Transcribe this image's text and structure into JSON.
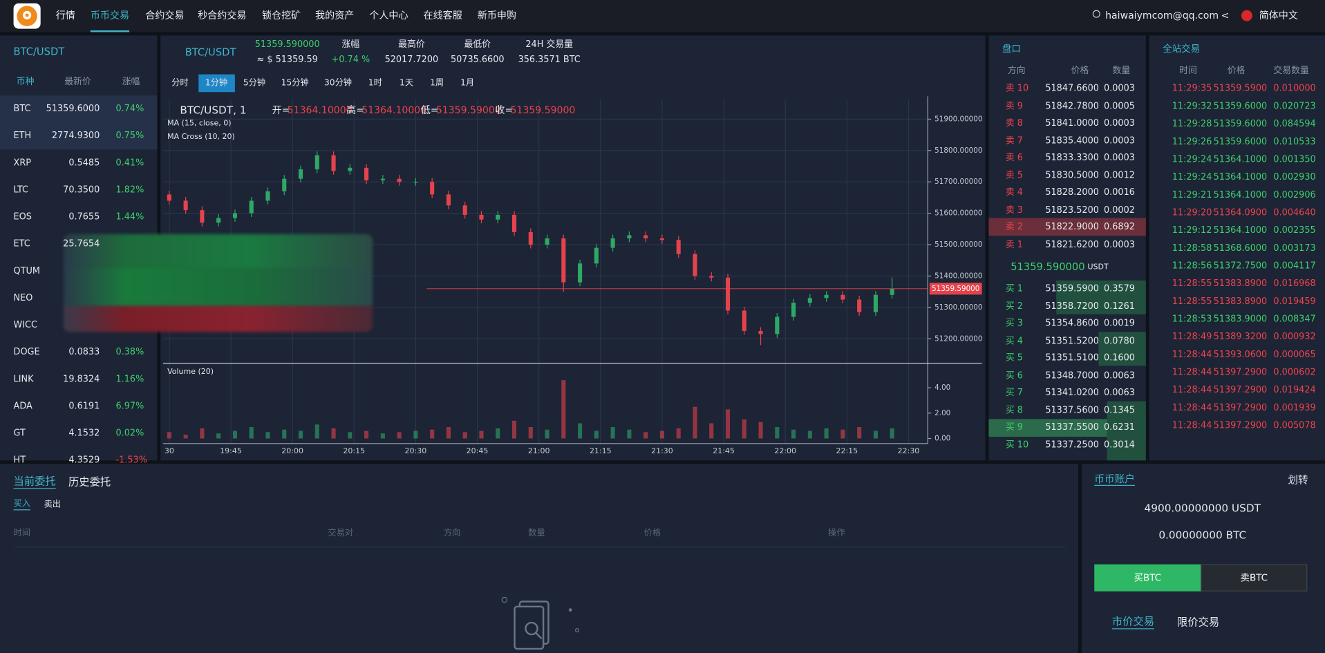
{
  "nav": {
    "items": [
      "行情",
      "币币交易",
      "合约交易",
      "秒合约交易",
      "锁仓挖矿",
      "我的资产",
      "个人中心",
      "在线客服",
      "新币申购"
    ],
    "user": "haiwaiymcom@qq.com",
    "caret": "<",
    "language": "简体中文"
  },
  "market": {
    "title": "BTC/USDT",
    "headers": [
      "币种",
      "最新价",
      "涨幅"
    ],
    "rows": [
      [
        "BTC",
        "51359.6000",
        "0.74%"
      ],
      [
        "ETH",
        "2774.9300",
        "0.75%"
      ],
      [
        "XRP",
        "0.5485",
        "0.41%"
      ],
      [
        "LTC",
        "70.3500",
        "1.82%"
      ],
      [
        "EOS",
        "0.7655",
        "1.44%"
      ],
      [
        "ETC",
        "25.7654",
        null
      ],
      [
        "QTUM",
        null,
        null
      ],
      [
        "NEO",
        null,
        null
      ],
      [
        "WICC",
        null,
        null
      ],
      [
        "DOGE",
        "0.0833",
        "0.38%"
      ],
      [
        "LINK",
        "19.8324",
        "1.16%"
      ],
      [
        "ADA",
        "0.6191",
        "6.97%"
      ],
      [
        "GT",
        "4.1532",
        "0.02%"
      ],
      [
        "HT",
        "4.3529",
        "-1.53%"
      ]
    ]
  },
  "ticker": {
    "pair": "BTC/USDT",
    "price": "51359.590000",
    "approx": "≈ $ 51359.59",
    "stats": [
      {
        "label": "涨幅",
        "value": "+0.74 %"
      },
      {
        "label": "最高价",
        "value": "52017.7200"
      },
      {
        "label": "最低价",
        "value": "50735.6600"
      },
      {
        "label": "24H 交易量",
        "value": "356.3571 BTC"
      }
    ]
  },
  "intervals": [
    "分时",
    "1分钟",
    "5分钟",
    "15分钟",
    "30分钟",
    "1时",
    "1天",
    "1周",
    "1月"
  ],
  "chart_data": {
    "type": "candlestick",
    "title": "BTC/USDT, 1",
    "ohlc": [
      {
        "key": "开=",
        "value": "51364.10000"
      },
      {
        "key": "高=",
        "value": "51364.10000"
      },
      {
        "key": "低=",
        "value": "51359.59000"
      },
      {
        "key": "收=",
        "value": "51359.59000"
      }
    ],
    "indicators": [
      "MA (15, close, 0)",
      "MA Cross (10, 20)"
    ],
    "volume_title": "Volume (20)",
    "up_color": "#2ea865",
    "down_color": "#e5434b",
    "grid": true,
    "x": [
      0,
      4,
      8,
      12,
      16,
      20,
      24,
      28,
      32,
      36,
      40,
      44,
      48,
      52,
      56,
      60,
      64,
      68,
      72,
      76,
      80,
      84,
      88,
      92,
      96,
      100,
      104,
      108,
      112,
      116,
      120,
      124,
      128,
      132,
      136,
      140,
      144,
      148,
      152,
      156,
      160,
      164,
      168,
      172,
      176
    ],
    "open": [
      51660,
      51640,
      51610,
      51570,
      51585,
      51600,
      51640,
      51670,
      51710,
      51740,
      51785,
      51735,
      51745,
      51705,
      51710,
      51700,
      51700,
      51660,
      51625,
      51595,
      51580,
      51595,
      51540,
      51500,
      51520,
      51380,
      51440,
      51490,
      51520,
      51530,
      51520,
      51515,
      51470,
      51400,
      51395,
      51290,
      51225,
      51215,
      51270,
      51315,
      51330,
      51340,
      51325,
      51285,
      51340
    ],
    "high": [
      51672,
      51652,
      51622,
      51597,
      51612,
      51652,
      51682,
      51722,
      51752,
      51797,
      51797,
      51757,
      51757,
      51722,
      51722,
      51712,
      51712,
      51672,
      51637,
      51607,
      51607,
      51607,
      51552,
      51532,
      51532,
      51452,
      51502,
      51532,
      51542,
      51542,
      51532,
      51527,
      51482,
      51412,
      51407,
      51302,
      51237,
      51282,
      51327,
      51342,
      51352,
      51352,
      51337,
      51352,
      51395
    ],
    "low": [
      51628,
      51598,
      51558,
      51558,
      51573,
      51588,
      51628,
      51658,
      51698,
      51728,
      51723,
      51723,
      51693,
      51693,
      51688,
      51688,
      51648,
      51613,
      51583,
      51568,
      51568,
      51528,
      51488,
      51488,
      51350,
      51368,
      51428,
      51478,
      51508,
      51508,
      51503,
      51458,
      51388,
      51383,
      51278,
      51213,
      51180,
      51203,
      51258,
      51303,
      51318,
      51313,
      51273,
      51273,
      51328
    ],
    "close": [
      51640,
      51610,
      51570,
      51585,
      51600,
      51640,
      51670,
      51710,
      51740,
      51785,
      51735,
      51745,
      51705,
      51710,
      51700,
      51700,
      51660,
      51625,
      51595,
      51580,
      51595,
      51540,
      51500,
      51520,
      51380,
      51440,
      51490,
      51520,
      51530,
      51520,
      51515,
      51470,
      51400,
      51395,
      51290,
      51225,
      51215,
      51270,
      51315,
      51330,
      51340,
      51325,
      51285,
      51340,
      51359.59
    ],
    "volume": [
      0.5,
      0.3,
      0.8,
      0.4,
      0.6,
      0.9,
      0.5,
      0.7,
      0.6,
      1.1,
      0.8,
      0.5,
      0.6,
      0.4,
      0.5,
      0.6,
      0.7,
      0.9,
      0.5,
      0.6,
      0.8,
      1.4,
      0.9,
      0.7,
      4.6,
      1.2,
      0.6,
      0.9,
      0.7,
      0.5,
      0.6,
      0.8,
      2.5,
      1.2,
      2.3,
      1.5,
      1.3,
      0.9,
      0.7,
      0.6,
      0.8,
      0.7,
      0.9,
      0.6,
      0.8
    ],
    "last_price_label": "51359.59000",
    "xlim": [
      -1.5,
      184.7
    ],
    "xticks": [
      {
        "value": 0,
        "label": "30"
      },
      {
        "value": 15,
        "label": "19:45"
      },
      {
        "value": 30,
        "label": "20:00"
      },
      {
        "value": 45,
        "label": "20:15"
      },
      {
        "value": 60,
        "label": "20:30"
      },
      {
        "value": 75,
        "label": "20:45"
      },
      {
        "value": 90,
        "label": "21:00"
      },
      {
        "value": 105,
        "label": "21:15"
      },
      {
        "value": 120,
        "label": "21:30"
      },
      {
        "value": 135,
        "label": "21:45"
      },
      {
        "value": 150,
        "label": "22:00"
      },
      {
        "value": 165,
        "label": "22:15"
      },
      {
        "value": 180,
        "label": "22:30"
      }
    ],
    "ylim": [
      51122,
      51962
    ],
    "yticks": [
      {
        "value": 51200,
        "label": "51200.00000"
      },
      {
        "value": 51300,
        "label": "51300.00000"
      },
      {
        "value": 51400,
        "label": "51400.00000"
      },
      {
        "value": 51500,
        "label": "51500.00000"
      },
      {
        "value": 51600,
        "label": "51600.00000"
      },
      {
        "value": 51700,
        "label": "51700.00000"
      },
      {
        "value": 51800,
        "label": "51800.00000"
      },
      {
        "value": 51900,
        "label": "51900.00000"
      }
    ],
    "y2lim": [
      -0.4,
      5.8
    ],
    "y2ticks": [
      {
        "value": 0,
        "label": "0.00"
      },
      {
        "value": 2,
        "label": "2.00"
      },
      {
        "value": 4,
        "label": "4.00"
      }
    ]
  },
  "orderbook": {
    "title": "盘口",
    "headers": [
      "方向",
      "价格",
      "数量"
    ],
    "asks": [
      [
        "卖 10",
        "51847.6600",
        "0.0003"
      ],
      [
        "卖 9",
        "51842.7800",
        "0.0005"
      ],
      [
        "卖 8",
        "51841.0000",
        "0.0003"
      ],
      [
        "卖 7",
        "51835.4000",
        "0.0003"
      ],
      [
        "卖 6",
        "51833.3300",
        "0.0003"
      ],
      [
        "卖 5",
        "51830.5000",
        "0.0012"
      ],
      [
        "卖 4",
        "51828.2000",
        "0.0016"
      ],
      [
        "卖 3",
        "51823.5200",
        "0.0002"
      ],
      [
        "卖 2",
        "51822.9000",
        "0.6892"
      ],
      [
        "卖 1",
        "51821.6200",
        "0.0003"
      ]
    ],
    "mid_price": "51359.590000",
    "mid_unit": "USDT",
    "bids": [
      [
        "买 1",
        "51359.5900",
        "0.3579"
      ],
      [
        "买 2",
        "51358.7200",
        "0.1261"
      ],
      [
        "买 3",
        "51354.8600",
        "0.0019"
      ],
      [
        "买 4",
        "51351.5200",
        "0.0780"
      ],
      [
        "买 5",
        "51351.5100",
        "0.1600"
      ],
      [
        "买 6",
        "51348.7000",
        "0.0063"
      ],
      [
        "买 7",
        "51341.0200",
        "0.0063"
      ],
      [
        "买 8",
        "51337.5600",
        "0.1345"
      ],
      [
        "买 9",
        "51337.5500",
        "0.6231"
      ],
      [
        "买 10",
        "51337.2500",
        "0.3014"
      ]
    ]
  },
  "trades": {
    "title": "全站交易",
    "headers": [
      "时间",
      "价格",
      "交易数量"
    ],
    "rows": [
      [
        "11:29:35",
        "51359.5900",
        "0.010000"
      ],
      [
        "11:29:32",
        "51359.6000",
        "0.020723"
      ],
      [
        "11:29:28",
        "51359.6000",
        "0.084594"
      ],
      [
        "11:29:26",
        "51359.6000",
        "0.010533"
      ],
      [
        "11:29:24",
        "51364.1000",
        "0.001350"
      ],
      [
        "11:29:24",
        "51364.1000",
        "0.002930"
      ],
      [
        "11:29:21",
        "51364.1000",
        "0.002906"
      ],
      [
        "11:29:20",
        "51364.0900",
        "0.004640"
      ],
      [
        "11:29:12",
        "51364.1000",
        "0.002355"
      ],
      [
        "11:28:58",
        "51368.6000",
        "0.003173"
      ],
      [
        "11:28:56",
        "51372.7500",
        "0.004117"
      ],
      [
        "11:28:55",
        "51383.8900",
        "0.016968"
      ],
      [
        "11:28:55",
        "51383.8900",
        "0.019459"
      ],
      [
        "11:28:53",
        "51383.9000",
        "0.008347"
      ],
      [
        "11:28:49",
        "51389.3200",
        "0.000932"
      ],
      [
        "11:28:44",
        "51393.0600",
        "0.000065"
      ],
      [
        "11:28:44",
        "51397.2900",
        "0.000602"
      ],
      [
        "11:28:44",
        "51397.2900",
        "0.019424"
      ],
      [
        "11:28:44",
        "51397.2900",
        "0.001939"
      ],
      [
        "11:28:44",
        "51397.2900",
        "0.005078"
      ]
    ],
    "colors": [
      "#f0434b",
      "#3fd06a",
      "#3fd06a",
      "#3fd06a",
      "#3fd06a",
      "#3fd06a",
      "#3fd06a",
      "#f0434b",
      "#3fd06a",
      "#3fd06a",
      "#3fd06a",
      "#f0434b",
      "#f0434b",
      "#3fd06a",
      "#f0434b",
      "#f0434b",
      "#f0434b",
      "#f0434b",
      "#f0434b",
      "#f0434b"
    ]
  },
  "orders": {
    "tabs": [
      "当前委托",
      "历史委托"
    ],
    "sides": [
      "买入",
      "卖出"
    ],
    "columns": [
      "时间",
      "交易对",
      "方向",
      "数量",
      "价格",
      "操作"
    ]
  },
  "account": {
    "title": "币币账户",
    "transfer": "划转",
    "balances": [
      "4900.00000000 USDT",
      "0.00000000 BTC"
    ],
    "buttons": [
      "买BTC",
      "卖BTC"
    ],
    "tabs": [
      "市价交易",
      "限价交易"
    ]
  }
}
